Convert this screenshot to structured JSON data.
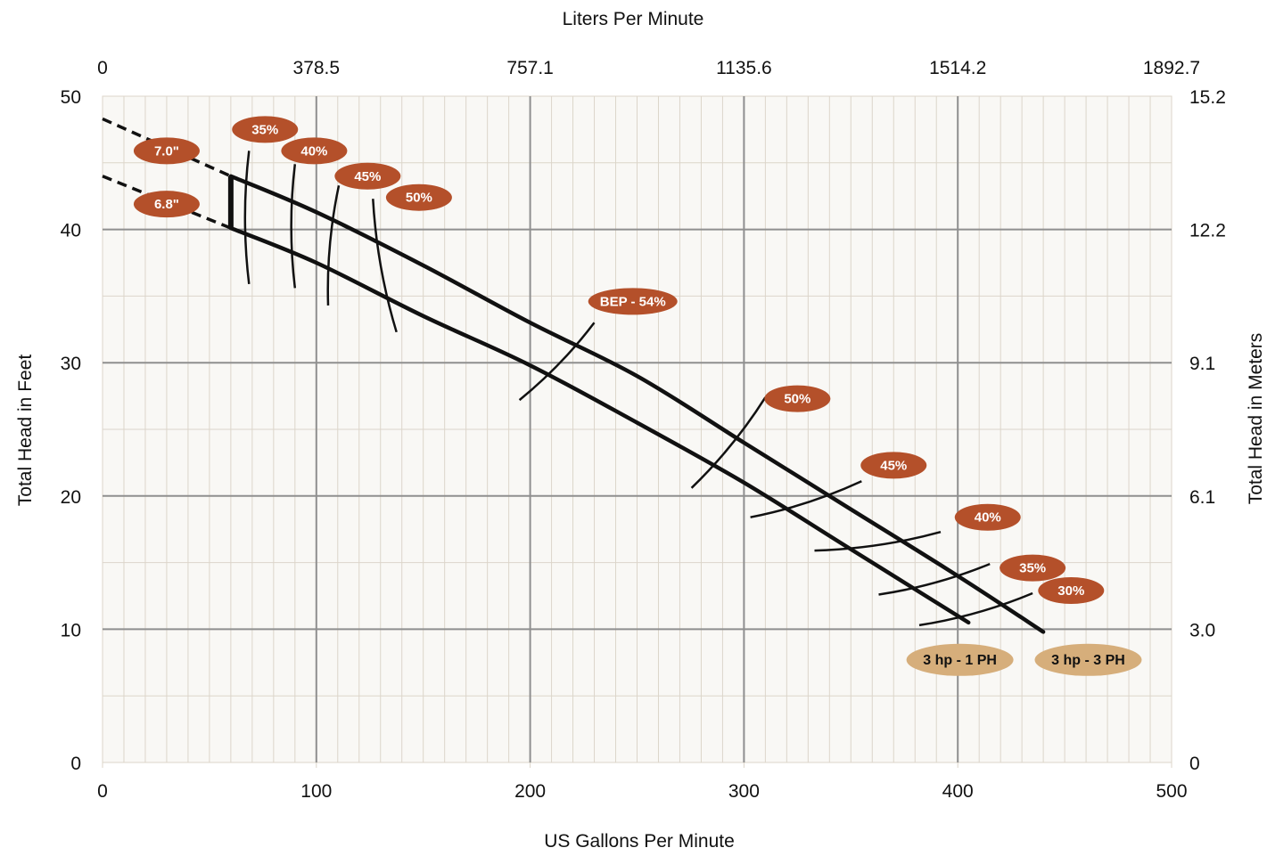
{
  "chart_data": {
    "type": "line",
    "title": "",
    "xlabel": "US Gallons Per Minute",
    "ylabel": "Total Head in Feet",
    "x2label": "Liters Per Minute",
    "y2label": "Total Head in Meters",
    "xlim": [
      0,
      500
    ],
    "ylim": [
      0,
      50
    ],
    "x_ticks": [
      0,
      100,
      200,
      300,
      400,
      500
    ],
    "x_tick_labels": [
      "0",
      "100",
      "200",
      "300",
      "400",
      "500"
    ],
    "y_ticks": [
      0,
      10,
      20,
      30,
      40,
      50
    ],
    "y_tick_labels": [
      "0",
      "10",
      "20",
      "30",
      "40",
      "50"
    ],
    "x2_ticks": [
      0,
      100,
      200,
      300,
      400,
      500
    ],
    "x2_tick_labels": [
      "0",
      "378.5",
      "757.1",
      "1135.6",
      "1514.2",
      "1892.7"
    ],
    "y2_ticks": [
      0,
      10,
      20,
      30,
      40,
      50
    ],
    "y2_tick_labels": [
      "0",
      "3.0",
      "6.1",
      "9.1",
      "12.2",
      "15.2"
    ],
    "grid": true,
    "colors": {
      "plot_background": "#f9f8f5",
      "minor_grid": "#dcd5ca",
      "major_grid": "#8f8f8f",
      "curve": "#111111",
      "badge": "#b4502a",
      "model_badge": "#d6ae7b",
      "badge_text": "#ffffff"
    },
    "curves": [
      {
        "impeller": "7.0\"",
        "model": "3 hp - 3 PH",
        "points": [
          [
            60,
            44
          ],
          [
            100,
            41.3
          ],
          [
            150,
            37.3
          ],
          [
            200,
            33
          ],
          [
            250,
            29
          ],
          [
            300,
            24
          ],
          [
            350,
            19
          ],
          [
            400,
            14
          ],
          [
            440,
            9.8
          ]
        ],
        "extrapolated": [
          [
            0,
            48.3
          ],
          [
            60,
            44
          ]
        ]
      },
      {
        "impeller": "6.8\"",
        "model": "3 hp - 1 PH",
        "points": [
          [
            60,
            40.1
          ],
          [
            100,
            37.5
          ],
          [
            150,
            33.5
          ],
          [
            200,
            29.8
          ],
          [
            250,
            25.5
          ],
          [
            300,
            21
          ],
          [
            350,
            16
          ],
          [
            405,
            10.5
          ]
        ],
        "extrapolated": [
          [
            0,
            44
          ],
          [
            60,
            40.1
          ]
        ]
      }
    ],
    "efficiency_lines": [
      {
        "label": "35%",
        "points": [
          [
            68.5,
            45.9
          ],
          [
            68.5,
            35.9
          ]
        ],
        "label_at": [
          76,
          47.5
        ]
      },
      {
        "label": "40%",
        "points": [
          [
            90,
            44.9
          ],
          [
            90,
            35.6
          ]
        ],
        "label_at": [
          99,
          45.9
        ]
      },
      {
        "label": "45%",
        "points": [
          [
            110.5,
            43.3
          ],
          [
            105.5,
            34.3
          ]
        ],
        "label_at": [
          124,
          44
        ]
      },
      {
        "label": "50%",
        "points": [
          [
            126.5,
            42.3
          ],
          [
            137.5,
            32.3
          ]
        ],
        "label_at": [
          148,
          42.4
        ]
      },
      {
        "label": "BEP - 54%",
        "points": [
          [
            195,
            27.2
          ],
          [
            230,
            33
          ]
        ],
        "label_at": [
          248,
          34.6
        ]
      },
      {
        "label": "50%",
        "points": [
          [
            275.5,
            20.6
          ],
          [
            310,
            27.4
          ]
        ],
        "label_at": [
          325,
          27.3
        ]
      },
      {
        "label": "45%",
        "points": [
          [
            303,
            18.4
          ],
          [
            355,
            21.1
          ]
        ],
        "label_at": [
          370,
          22.3
        ]
      },
      {
        "label": "40%",
        "points": [
          [
            333,
            15.9
          ],
          [
            392,
            17.3
          ]
        ],
        "label_at": [
          414,
          18.4
        ]
      },
      {
        "label": "35%",
        "points": [
          [
            363,
            12.6
          ],
          [
            415,
            14.9
          ]
        ],
        "label_at": [
          435,
          14.6
        ]
      },
      {
        "label": "30%",
        "points": [
          [
            382,
            10.3
          ],
          [
            435,
            12.7
          ]
        ],
        "label_at": [
          453,
          12.9
        ]
      }
    ],
    "impeller_labels": [
      {
        "label": "7.0\"",
        "at": [
          30,
          45.9
        ]
      },
      {
        "label": "6.8\"",
        "at": [
          30,
          41.9
        ]
      }
    ],
    "model_labels": [
      {
        "label": "3 hp - 1 PH",
        "at": [
          401,
          7.7
        ]
      },
      {
        "label": "3 hp - 3 PH",
        "at": [
          461,
          7.7
        ]
      }
    ]
  }
}
